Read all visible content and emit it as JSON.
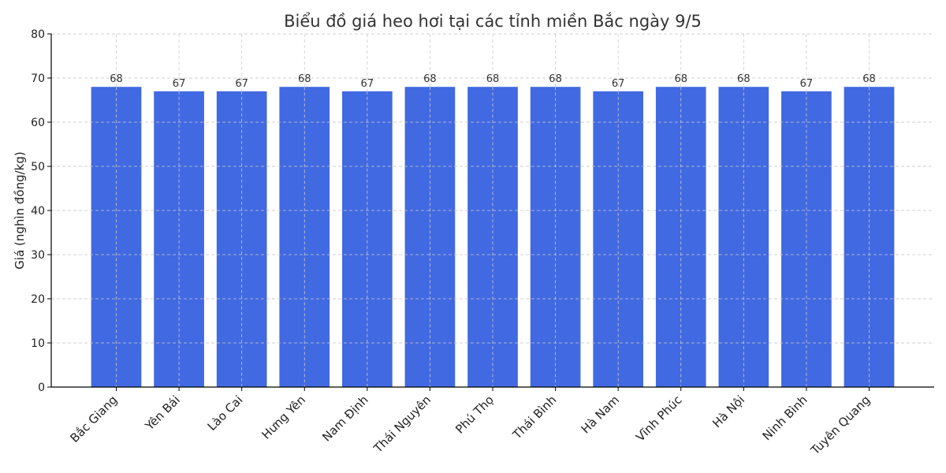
{
  "chart_data": {
    "type": "bar",
    "title": "Biểu đồ giá heo hơi tại các tỉnh miền Bắc ngày 9/5",
    "xlabel": "",
    "ylabel": "Giá (nghìn đồng/kg)",
    "ylim": [
      0,
      80
    ],
    "yticks": [
      0,
      10,
      20,
      30,
      40,
      50,
      60,
      70,
      80
    ],
    "categories": [
      "Bắc Giang",
      "Yên Bái",
      "Lào Cai",
      "Hưng Yên",
      "Nam Định",
      "Thái Nguyên",
      "Phú Thọ",
      "Thái Bình",
      "Hà Nam",
      "Vĩnh Phúc",
      "Hà Nội",
      "Ninh Bình",
      "Tuyên Quang"
    ],
    "values": [
      68,
      67,
      67,
      68,
      67,
      68,
      68,
      68,
      67,
      68,
      68,
      67,
      68
    ],
    "data_labels": [
      "68",
      "67",
      "67",
      "68",
      "67",
      "68",
      "68",
      "68",
      "67",
      "68",
      "68",
      "67",
      "68"
    ],
    "bar_color": "#4169E1",
    "grid": true
  }
}
